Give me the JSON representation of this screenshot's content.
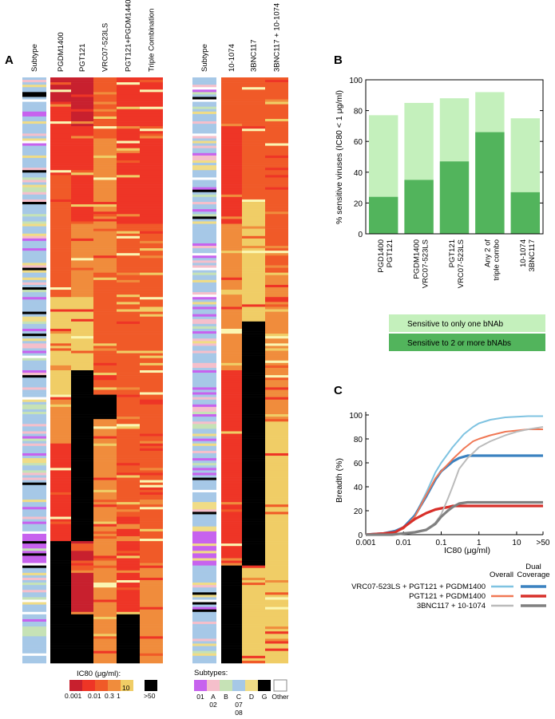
{
  "panel_labels": {
    "a": "A",
    "b": "B",
    "c": "C"
  },
  "heatmap": {
    "left_columns": [
      "Subtype",
      "PGDM1400",
      "PGT121",
      "VRC07-523LS",
      "PGT121+PGDM1440",
      "Triple Combination"
    ],
    "right_columns": [
      "Subtype",
      "10-1074",
      "3BNC117",
      "3BNC117 + 10-1074"
    ],
    "ic80_legend": {
      "title": "IC80 (μg/ml):",
      "ticks": [
        "0.001",
        "0.01",
        "0.3",
        "1",
        "10"
      ],
      "over_label": ">50",
      "colors": [
        "#c8202e",
        "#ee3526",
        "#f05a28",
        "#f08c3c",
        "#f0cd66",
        "#fbf6b2",
        "#000000"
      ]
    },
    "subtype_legend": {
      "title": "Subtypes:",
      "labels": [
        "01",
        "A\n02",
        "B",
        "C\n07\n08",
        "D",
        "G",
        "Other"
      ],
      "colors": [
        "#c762ee",
        "#f5bfcb",
        "#c6e2b6",
        "#a6c8e7",
        "#f0dc86",
        "#000000",
        "#ffffff"
      ]
    }
  },
  "chart_data": [
    {
      "type": "bar",
      "panel": "B",
      "categories": [
        "PGD1400\nPGT121",
        "PGDM1400\nVRC07-523LS",
        "PGT121\nVRC07-523LS",
        "Any 2 of\ntriple combo",
        "10-1074\n3BNC117"
      ],
      "series": [
        {
          "name": "Sensitive to only one bNAb",
          "color": "#c4f0bc",
          "values": [
            77,
            85,
            88,
            92,
            75
          ]
        },
        {
          "name": "Sensitive to 2 or more bNAbs",
          "color": "#52b45c",
          "values": [
            24,
            35,
            47,
            66,
            27
          ]
        }
      ],
      "stack_note": "light bar = total; dark bar = 2+ bNAbs",
      "ylabel": "% sensitive viruses (IC80 < 1 μg/ml)",
      "ylim": [
        0,
        100
      ],
      "yticks": [
        0,
        20,
        40,
        60,
        80,
        100
      ]
    },
    {
      "type": "line",
      "panel": "C",
      "xlabel": "IC80 (μg/ml)",
      "ylabel": "Breadth (%)",
      "xscale": "log",
      "xticks": [
        "0.001",
        "0.01",
        "0.1",
        "1",
        "10",
        ">50"
      ],
      "xtick_values": [
        0.001,
        0.01,
        0.1,
        1,
        10,
        50
      ],
      "yticks": [
        0,
        20,
        40,
        60,
        80,
        100
      ],
      "ylim": [
        0,
        100
      ],
      "legend_headers": [
        "Overall",
        "Dual\nCoverage"
      ],
      "series": [
        {
          "name": "VRC07-523LS + PGT121 + PGDM1400",
          "kind": "Overall",
          "color": "#7fc3e1",
          "x": [
            0.001,
            0.003,
            0.006,
            0.01,
            0.02,
            0.04,
            0.07,
            0.1,
            0.2,
            0.4,
            0.7,
            1,
            2,
            5,
            10,
            20,
            50
          ],
          "y": [
            0,
            1,
            3,
            6,
            16,
            35,
            52,
            60,
            73,
            84,
            90,
            93,
            96,
            98,
            98.5,
            99,
            99
          ]
        },
        {
          "name": "VRC07-523LS + PGT121 + PGDM1400",
          "kind": "Dual Coverage",
          "color": "#3b82c0",
          "x": [
            0.001,
            0.003,
            0.006,
            0.01,
            0.02,
            0.04,
            0.07,
            0.1,
            0.2,
            0.3,
            0.5,
            1,
            10,
            50
          ],
          "y": [
            0,
            1,
            3,
            6,
            16,
            32,
            46,
            53,
            61,
            64,
            66,
            66,
            66,
            66
          ]
        },
        {
          "name": "PGT121 + PGDM1400",
          "kind": "Overall",
          "color": "#f07855",
          "x": [
            0.001,
            0.003,
            0.006,
            0.01,
            0.02,
            0.04,
            0.07,
            0.1,
            0.2,
            0.4,
            0.7,
            1,
            2,
            5,
            10,
            20,
            50
          ],
          "y": [
            0,
            1,
            2,
            5,
            15,
            33,
            47,
            53,
            63,
            72,
            78,
            80,
            83,
            86,
            87,
            88,
            88
          ]
        },
        {
          "name": "PGT121 + PGDM1400",
          "kind": "Dual Coverage",
          "color": "#d8302a",
          "x": [
            0.001,
            0.003,
            0.006,
            0.01,
            0.02,
            0.04,
            0.07,
            0.1,
            0.15,
            0.2,
            0.3,
            50
          ],
          "y": [
            0,
            1,
            2,
            6,
            13,
            18,
            21,
            22,
            23,
            24,
            24,
            24
          ]
        },
        {
          "name": "3BNC117 + 10-1074",
          "kind": "Overall",
          "color": "#bbbbbb",
          "x": [
            0.001,
            0.005,
            0.01,
            0.02,
            0.04,
            0.07,
            0.1,
            0.15,
            0.2,
            0.3,
            0.5,
            0.8,
            1,
            2,
            5,
            10,
            20,
            50
          ],
          "y": [
            0,
            0,
            1,
            2,
            4,
            10,
            17,
            30,
            40,
            55,
            64,
            70,
            73,
            78,
            83,
            86,
            88,
            90
          ]
        },
        {
          "name": "3BNC117 + 10-1074",
          "kind": "Dual Coverage",
          "color": "#808080",
          "x": [
            0.001,
            0.005,
            0.01,
            0.02,
            0.04,
            0.07,
            0.1,
            0.15,
            0.2,
            0.3,
            0.5,
            1,
            50
          ],
          "y": [
            0,
            0,
            1,
            2,
            4,
            9,
            15,
            20,
            23,
            26,
            27,
            27,
            27
          ]
        }
      ]
    }
  ]
}
